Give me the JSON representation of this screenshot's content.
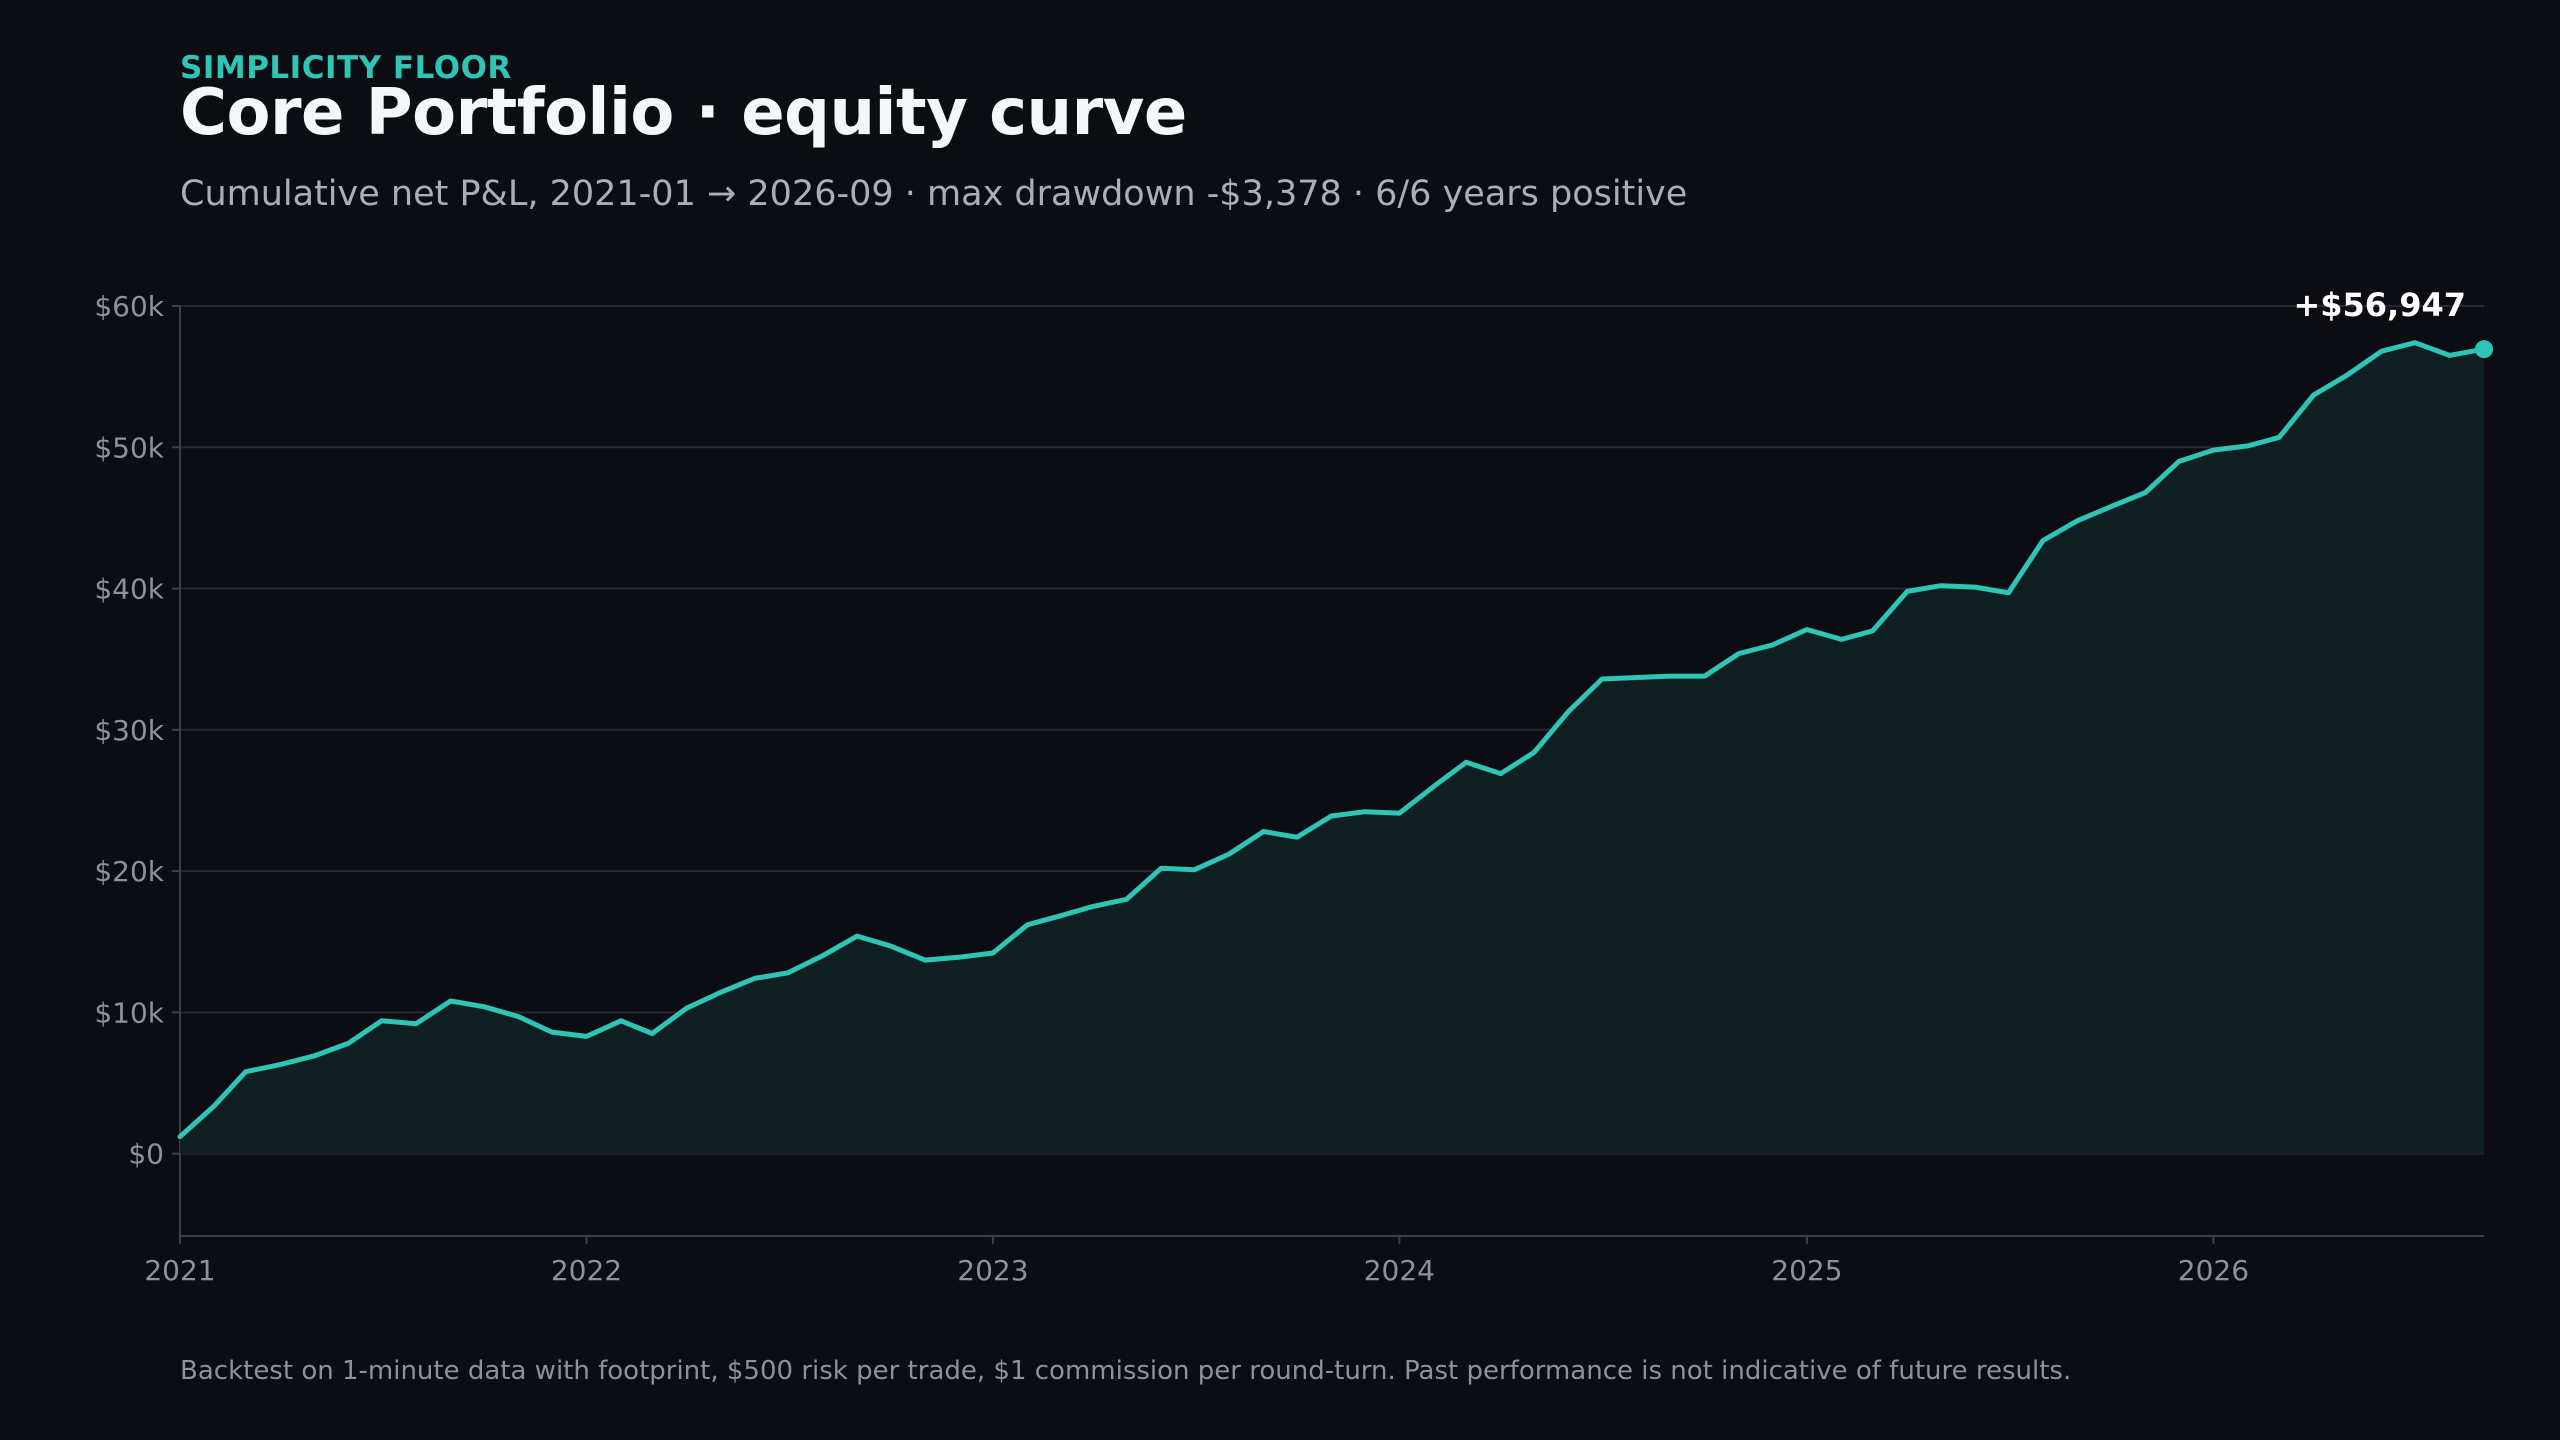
{
  "header": {
    "eyebrow": "SIMPLICITY FLOOR",
    "title": "Core Portfolio · equity curve",
    "subtitle": "Cumulative net P&L, 2021-01 → 2026-09 · max drawdown -$3,378 · 6/6 years positive"
  },
  "footnote": "Backtest on 1-minute data with footprint, $500 risk per trade, $1 commission per round-turn. Past performance is not indicative of future results.",
  "colors": {
    "background": "#0b0d12",
    "accent": "#2ec4b6",
    "area_fill": "#0f1f22",
    "grid": "#242a33",
    "tick_text": "#8a929d"
  },
  "chart_data": {
    "type": "area",
    "title": "",
    "xlabel": "",
    "ylabel": "",
    "x_start": "2021-01",
    "x_end": "2026-09",
    "x_ticks": [
      "2021",
      "2022",
      "2023",
      "2024",
      "2025",
      "2026"
    ],
    "y_ticks": [
      "$0",
      "$10k",
      "$20k",
      "$30k",
      "$40k",
      "$50k",
      "$60k"
    ],
    "ylim": [
      -3000,
      60000
    ],
    "grid": true,
    "end_label": "+$56,947",
    "series": [
      {
        "name": "",
        "x": [
          "2021-01",
          "2021-02",
          "2021-03",
          "2021-04",
          "2021-05",
          "2021-06",
          "2021-07",
          "2021-08",
          "2021-09",
          "2021-10",
          "2021-11",
          "2021-12",
          "2022-01",
          "2022-02",
          "2022-03",
          "2022-04",
          "2022-05",
          "2022-06",
          "2022-07",
          "2022-08",
          "2022-09",
          "2022-10",
          "2022-11",
          "2022-12",
          "2023-01",
          "2023-02",
          "2023-03",
          "2023-04",
          "2023-05",
          "2023-06",
          "2023-07",
          "2023-08",
          "2023-09",
          "2023-10",
          "2023-11",
          "2023-12",
          "2024-01",
          "2024-02",
          "2024-03",
          "2024-04",
          "2024-05",
          "2024-06",
          "2024-07",
          "2024-08",
          "2024-09",
          "2024-10",
          "2024-11",
          "2024-12",
          "2025-01",
          "2025-02",
          "2025-03",
          "2025-04",
          "2025-05",
          "2025-06",
          "2025-07",
          "2025-08",
          "2025-09",
          "2025-10",
          "2025-11",
          "2025-12",
          "2026-01",
          "2026-02",
          "2026-03",
          "2026-04",
          "2026-05",
          "2026-06",
          "2026-07",
          "2026-08",
          "2026-09"
        ],
        "values": [
          1200,
          3400,
          5800,
          6300,
          6900,
          7800,
          9400,
          9200,
          10800,
          10400,
          9700,
          8600,
          8300,
          9400,
          8500,
          10300,
          11400,
          12400,
          12800,
          14000,
          15400,
          14700,
          13700,
          13900,
          14200,
          16200,
          16800,
          17500,
          18000,
          20200,
          20100,
          21200,
          22800,
          22400,
          23900,
          24200,
          24100,
          26000,
          27700,
          26900,
          28400,
          31300,
          33600,
          33700,
          33800,
          33800,
          35400,
          36000,
          37100,
          36400,
          37000,
          39800,
          40200,
          40100,
          39700,
          43400,
          44800,
          45800,
          46800,
          49000,
          49800,
          50100,
          50700,
          53700,
          55100,
          56800,
          57400,
          56500,
          56947
        ]
      }
    ]
  }
}
